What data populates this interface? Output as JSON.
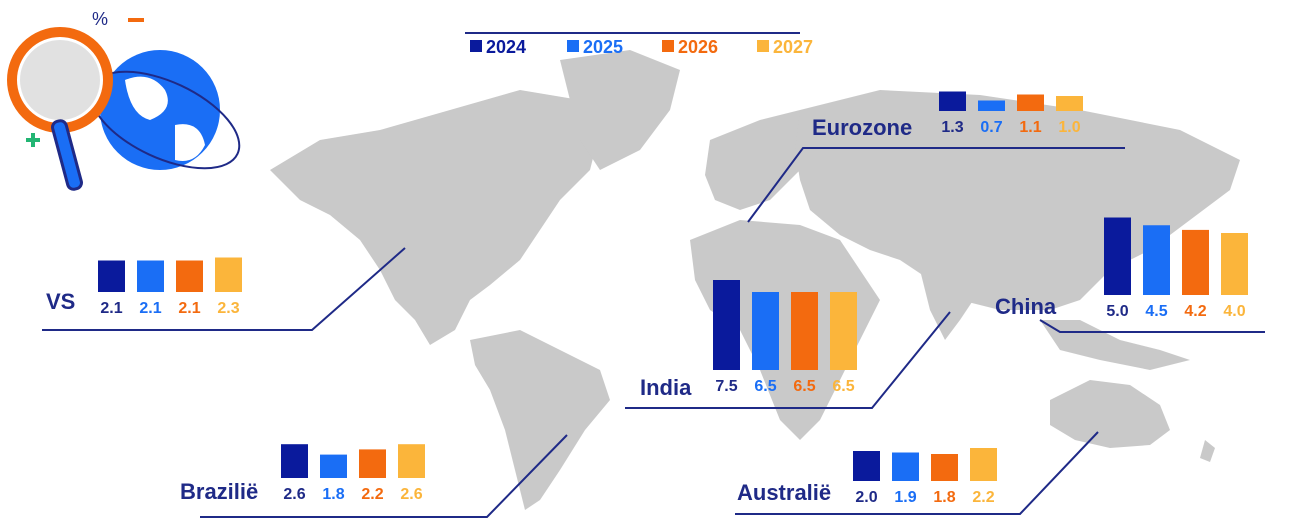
{
  "colors": {
    "2024": "#0a1a9c",
    "2025": "#1a6ef5",
    "2026": "#f36a0f",
    "2027": "#fbb53b",
    "map": "#c9c9c9",
    "leader": "#1f2a87"
  },
  "icons": [
    "magnifier-globe-icon",
    "percent-icon",
    "minus-icon",
    "plus-icon"
  ],
  "icon_glyphs": {
    "percent": "%"
  },
  "chart_data": {
    "type": "bar",
    "background": "world-map",
    "legend": {
      "placement": "top-center",
      "entries": [
        "2024",
        "2025",
        "2026",
        "2027"
      ]
    },
    "categories": [
      "2024",
      "2025",
      "2026",
      "2027"
    ],
    "groups": [
      {
        "name": "VS",
        "values": [
          2.1,
          2.1,
          2.1,
          2.3
        ],
        "labels": [
          "2.1",
          "2.1",
          "2.1",
          "2.3"
        ]
      },
      {
        "name": "Eurozone",
        "values": [
          1.3,
          0.7,
          1.1,
          1.0
        ],
        "labels": [
          "1.3",
          "0.7",
          "1.1",
          "1.0"
        ]
      },
      {
        "name": "China",
        "values": [
          5.0,
          4.5,
          4.2,
          4.0
        ],
        "labels": [
          "5.0",
          "4.5",
          "4.2",
          "4.0"
        ]
      },
      {
        "name": "India",
        "values": [
          7.5,
          6.5,
          6.5,
          6.5
        ],
        "labels": [
          "7.5",
          "6.5",
          "6.5",
          "6.5"
        ]
      },
      {
        "name": "Brazilië",
        "values": [
          2.6,
          1.8,
          2.2,
          2.6
        ],
        "labels": [
          "2.6",
          "1.8",
          "2.2",
          "2.6"
        ]
      },
      {
        "name": "Australië",
        "values": [
          2.0,
          1.9,
          1.8,
          2.2
        ],
        "labels": [
          "2.0",
          "1.9",
          "1.8",
          "2.2"
        ]
      }
    ]
  }
}
